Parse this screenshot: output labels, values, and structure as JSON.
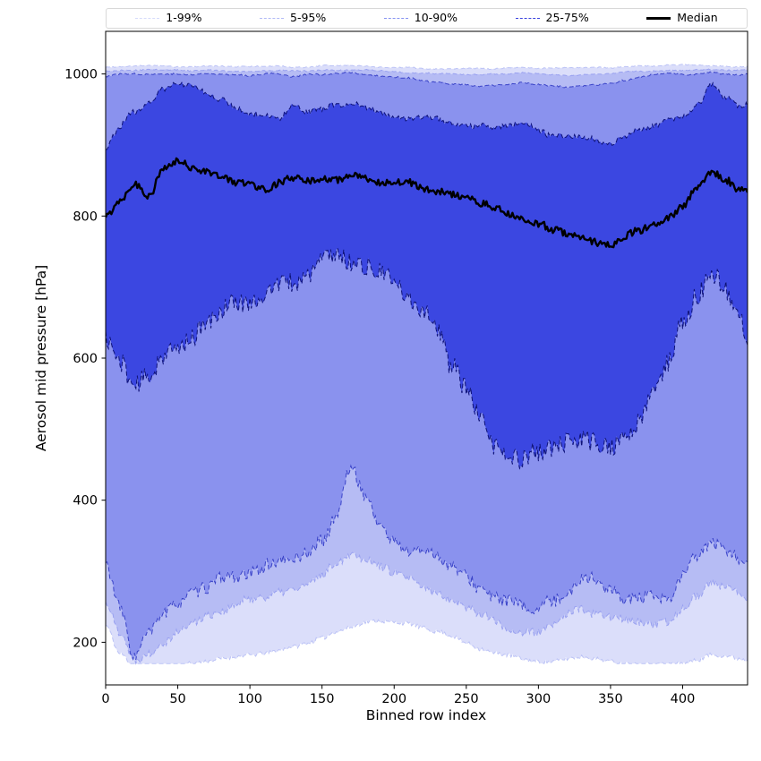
{
  "figure": {
    "xlabel": "Binned row index",
    "ylabel": "Aerosol mid pressure [hPa]"
  },
  "legend": {
    "items": [
      {
        "label": "1-99%",
        "color": "rgba(70,90,235,0.22)",
        "style": "dashed"
      },
      {
        "label": "5-95%",
        "color": "rgba(70,90,235,0.42)",
        "style": "dashed"
      },
      {
        "label": "10-90%",
        "color": "rgba(70,90,235,0.65)",
        "style": "dashed"
      },
      {
        "label": "25-75%",
        "color": "rgba(45,55,220,0.95)",
        "style": "dashed"
      },
      {
        "label": "Median",
        "color": "#000000",
        "style": "solid"
      }
    ]
  },
  "chart_data": {
    "type": "area",
    "title": "",
    "xlabel": "Binned row index",
    "ylabel": "Aerosol mid pressure [hPa]",
    "legend_position": "top-horizontal",
    "grid": false,
    "xlim": [
      0,
      445
    ],
    "ylim": [
      140,
      1060
    ],
    "xticks": [
      0,
      50,
      100,
      150,
      200,
      250,
      300,
      350,
      400
    ],
    "yticks": [
      200,
      400,
      600,
      800,
      1000
    ],
    "x": [
      0,
      10,
      20,
      30,
      40,
      50,
      60,
      70,
      80,
      90,
      100,
      110,
      120,
      130,
      140,
      150,
      160,
      170,
      180,
      190,
      200,
      210,
      220,
      230,
      240,
      250,
      260,
      270,
      280,
      290,
      300,
      310,
      320,
      330,
      340,
      350,
      360,
      370,
      380,
      390,
      400,
      410,
      420,
      430,
      440,
      445
    ],
    "series": {
      "p1": [
        225,
        185,
        168,
        168,
        168,
        170,
        172,
        175,
        178,
        180,
        182,
        185,
        188,
        192,
        198,
        205,
        215,
        222,
        228,
        230,
        228,
        225,
        220,
        215,
        208,
        200,
        192,
        185,
        180,
        176,
        174,
        174,
        176,
        178,
        176,
        174,
        172,
        171,
        170,
        170,
        172,
        176,
        182,
        180,
        176,
        174
      ],
      "p5": [
        260,
        215,
        172,
        185,
        205,
        218,
        228,
        238,
        246,
        252,
        258,
        262,
        268,
        272,
        280,
        295,
        315,
        330,
        318,
        305,
        295,
        288,
        280,
        272,
        262,
        250,
        238,
        228,
        222,
        218,
        218,
        225,
        238,
        248,
        242,
        235,
        228,
        225,
        224,
        228,
        245,
        262,
        285,
        275,
        268,
        262
      ],
      "p10": [
        305,
        250,
        180,
        210,
        245,
        255,
        265,
        275,
        285,
        290,
        298,
        300,
        305,
        310,
        320,
        345,
        380,
        440,
        405,
        370,
        350,
        335,
        325,
        318,
        310,
        300,
        280,
        262,
        252,
        248,
        245,
        255,
        275,
        290,
        282,
        275,
        262,
        258,
        258,
        262,
        295,
        320,
        345,
        330,
        318,
        310
      ],
      "p25": [
        630,
        600,
        565,
        575,
        605,
        615,
        635,
        655,
        665,
        680,
        690,
        700,
        710,
        705,
        720,
        735,
        745,
        742,
        738,
        720,
        700,
        680,
        660,
        640,
        600,
        555,
        510,
        480,
        465,
        458,
        465,
        475,
        488,
        492,
        485,
        478,
        495,
        510,
        545,
        590,
        655,
        700,
        730,
        700,
        655,
        620
      ],
      "median": [
        800,
        822,
        845,
        830,
        868,
        878,
        868,
        862,
        856,
        846,
        842,
        838,
        845,
        851,
        848,
        855,
        852,
        856,
        850,
        846,
        848,
        845,
        840,
        838,
        832,
        828,
        820,
        812,
        805,
        795,
        788,
        778,
        775,
        768,
        762,
        760,
        772,
        780,
        790,
        800,
        815,
        840,
        862,
        852,
        838,
        835
      ],
      "p75": [
        900,
        925,
        945,
        962,
        976,
        985,
        982,
        974,
        962,
        952,
        945,
        940,
        938,
        956,
        948,
        952,
        958,
        960,
        950,
        945,
        942,
        940,
        938,
        935,
        932,
        930,
        928,
        925,
        928,
        930,
        922,
        915,
        912,
        908,
        905,
        905,
        912,
        918,
        925,
        932,
        940,
        955,
        985,
        963,
        950,
        955
      ],
      "p90": [
        997,
        999,
        1000,
        1001,
        1000,
        1000,
        999,
        1000,
        1000,
        999,
        998,
        999,
        1000,
        996,
        998,
        999,
        1000,
        1001,
        999,
        997,
        995,
        993,
        990,
        988,
        986,
        985,
        983,
        984,
        986,
        988,
        985,
        983,
        980,
        982,
        984,
        985,
        990,
        995,
        998,
        1000,
        1000,
        1001,
        1002,
        1000,
        999,
        1000
      ],
      "p95": [
        1004,
        1005,
        1005,
        1006,
        1005,
        1005,
        1004,
        1005,
        1005,
        1004,
        1004,
        1005,
        1005,
        1004,
        1004,
        1005,
        1005,
        1006,
        1005,
        1004,
        1003,
        1002,
        1001,
        1000,
        1000,
        999,
        999,
        1000,
        1001,
        1002,
        1000,
        999,
        998,
        999,
        1000,
        1001,
        1003,
        1004,
        1005,
        1005,
        1005,
        1006,
        1006,
        1005,
        1005,
        1005
      ],
      "p99": [
        1010,
        1011,
        1012,
        1013,
        1011,
        1010,
        1011,
        1012,
        1011,
        1010,
        1010,
        1011,
        1012,
        1010,
        1010,
        1011,
        1011,
        1012,
        1011,
        1010,
        1009,
        1009,
        1008,
        1008,
        1008,
        1008,
        1008,
        1008,
        1009,
        1009,
        1008,
        1008,
        1008,
        1008,
        1009,
        1009,
        1010,
        1011,
        1011,
        1012,
        1012,
        1012,
        1011,
        1011,
        1010,
        1010
      ]
    },
    "band_defs": [
      {
        "name": "1-99%",
        "low": "p1",
        "high": "p99",
        "fill": "#dbdefa",
        "edge": "#bcc3f6"
      },
      {
        "name": "5-95%",
        "low": "p5",
        "high": "p95",
        "fill": "#b6bcf4",
        "edge": "#99a1f0"
      },
      {
        "name": "10-90%",
        "low": "p10",
        "high": "p90",
        "fill": "#8a92ee",
        "edge": "#3a43c8"
      },
      {
        "name": "25-75%",
        "low": "p25",
        "high": "p75",
        "fill": "#3b47e1",
        "edge": "#0e1277"
      }
    ],
    "median_style": {
      "color": "#000000",
      "width": 2.4
    },
    "value_floor": 170,
    "value_cap": 1014
  }
}
